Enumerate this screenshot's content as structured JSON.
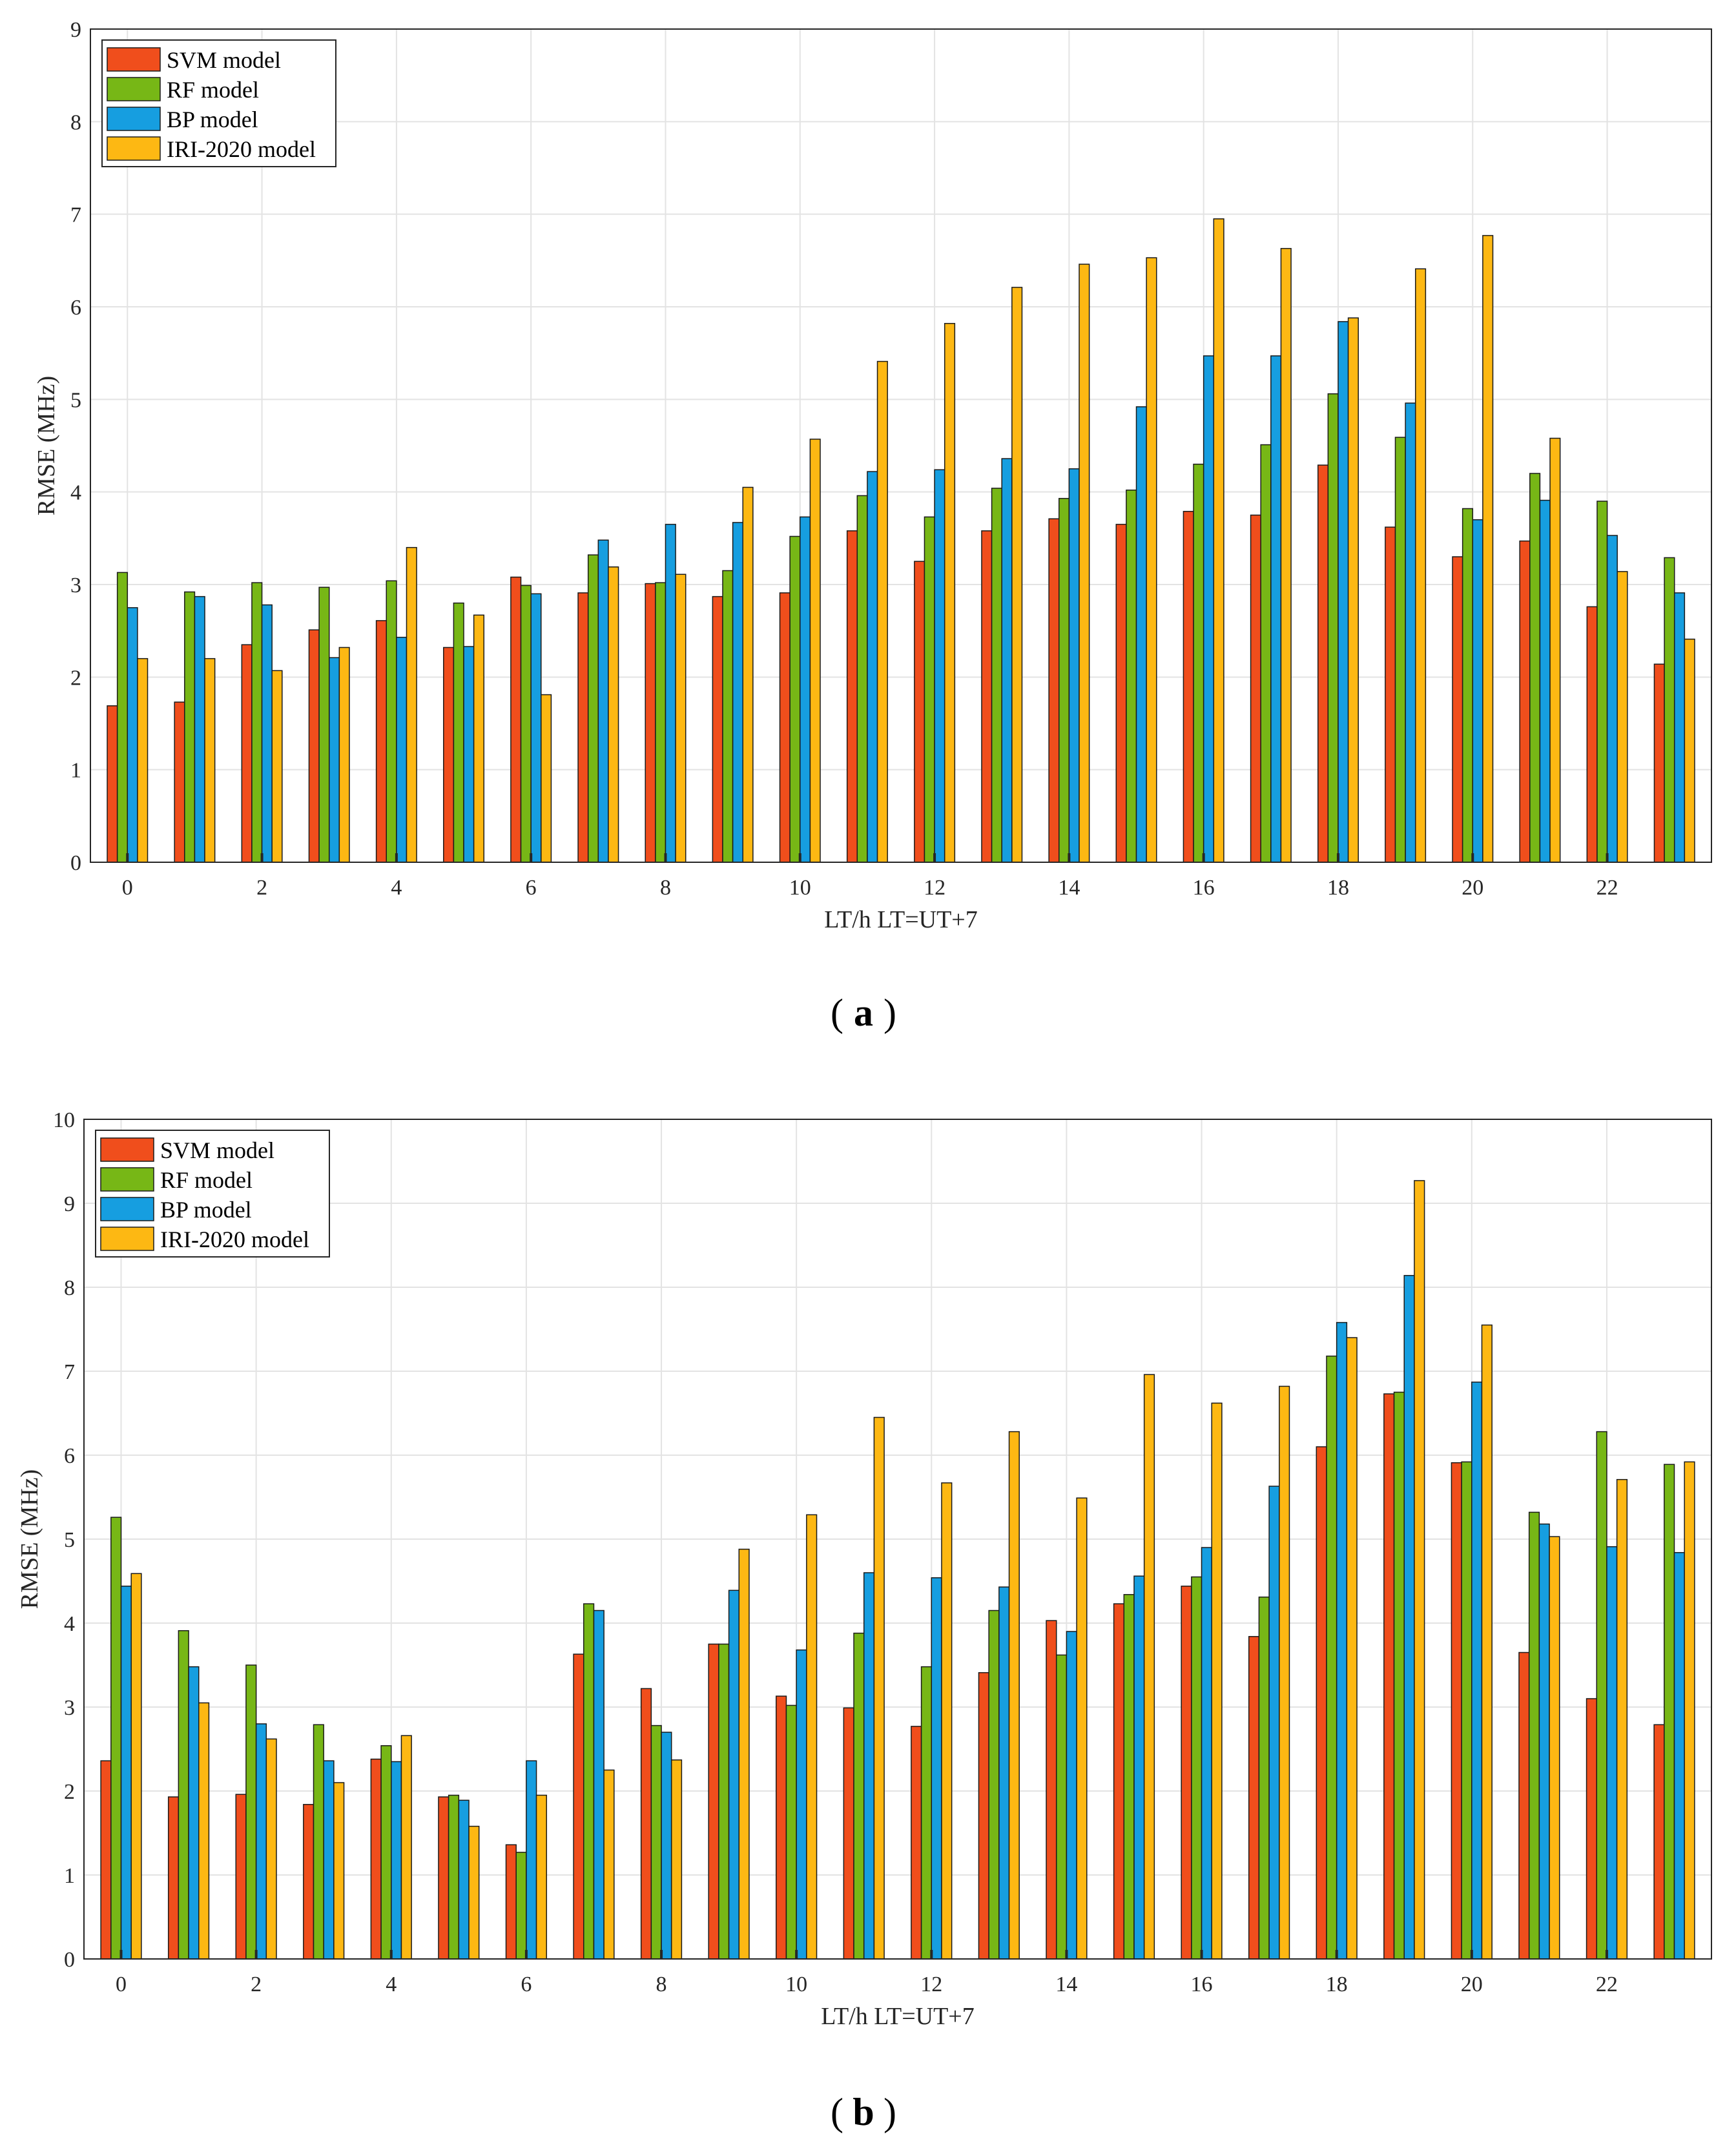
{
  "colors": {
    "svm": "#f04e1c",
    "rf": "#77b716",
    "bp": "#169ee0",
    "iri": "#fdb813",
    "grid": "#e3e3e3",
    "axis": "#262626"
  },
  "chart_data": [
    {
      "type": "bar",
      "panel_label": "a",
      "xlabel": "LT/h  LT=UT+7",
      "ylabel": "RMSE (MHz)",
      "ylim": [
        0,
        9
      ],
      "yticks": [
        "0",
        "1",
        "2",
        "3",
        "4",
        "5",
        "6",
        "7",
        "8",
        "9"
      ],
      "xticks": [
        "0",
        "2",
        "4",
        "6",
        "8",
        "10",
        "12",
        "14",
        "16",
        "18",
        "20",
        "22"
      ],
      "categories": [
        "0",
        "1",
        "2",
        "3",
        "4",
        "5",
        "6",
        "7",
        "8",
        "9",
        "10",
        "11",
        "12",
        "13",
        "14",
        "15",
        "16",
        "17",
        "18",
        "19",
        "20",
        "21",
        "22",
        "23"
      ],
      "grid": true,
      "legend_position": "top-left",
      "series": [
        {
          "name": "SVM model",
          "color_key": "svm",
          "values": [
            1.69,
            1.73,
            2.35,
            2.51,
            2.61,
            2.32,
            3.08,
            2.91,
            3.01,
            2.87,
            2.91,
            3.58,
            3.25,
            3.58,
            3.71,
            3.65,
            3.79,
            3.75,
            4.29,
            3.62,
            3.3,
            3.47,
            2.76,
            2.14
          ]
        },
        {
          "name": "RF model",
          "color_key": "rf",
          "values": [
            3.13,
            2.92,
            3.02,
            2.97,
            3.04,
            2.8,
            2.99,
            3.32,
            3.02,
            3.15,
            3.52,
            3.96,
            3.73,
            4.04,
            3.93,
            4.02,
            4.3,
            4.51,
            5.06,
            4.59,
            3.82,
            4.2,
            3.9,
            3.29
          ]
        },
        {
          "name": "BP model",
          "color_key": "bp",
          "values": [
            2.75,
            2.87,
            2.78,
            2.21,
            2.43,
            2.33,
            2.9,
            3.48,
            3.65,
            3.67,
            3.73,
            4.22,
            4.24,
            4.36,
            4.25,
            4.92,
            5.47,
            5.47,
            5.84,
            4.96,
            3.7,
            3.91,
            3.53,
            2.91
          ]
        },
        {
          "name": "IRI-2020 model",
          "color_key": "iri",
          "values": [
            2.2,
            2.2,
            2.07,
            2.32,
            3.4,
            2.67,
            1.81,
            3.19,
            3.11,
            4.05,
            4.57,
            5.41,
            5.82,
            6.21,
            6.46,
            6.53,
            6.95,
            6.63,
            5.88,
            6.41,
            6.77,
            4.58,
            3.14,
            2.41
          ]
        }
      ]
    },
    {
      "type": "bar",
      "panel_label": "b",
      "xlabel": "LT/h  LT=UT+7",
      "ylabel": "RMSE (MHz)",
      "ylim": [
        0,
        10
      ],
      "yticks": [
        "0",
        "1",
        "2",
        "3",
        "4",
        "5",
        "6",
        "7",
        "8",
        "9",
        "10"
      ],
      "xticks": [
        "0",
        "2",
        "4",
        "6",
        "8",
        "10",
        "12",
        "14",
        "16",
        "18",
        "20",
        "22"
      ],
      "categories": [
        "0",
        "1",
        "2",
        "3",
        "4",
        "5",
        "6",
        "7",
        "8",
        "9",
        "10",
        "11",
        "12",
        "13",
        "14",
        "15",
        "16",
        "17",
        "18",
        "19",
        "20",
        "21",
        "22",
        "23"
      ],
      "grid": true,
      "legend_position": "top-left",
      "series": [
        {
          "name": "SVM model",
          "color_key": "svm",
          "values": [
            2.36,
            1.93,
            1.96,
            1.84,
            2.38,
            1.93,
            1.36,
            3.63,
            3.22,
            3.75,
            3.13,
            2.99,
            2.77,
            3.41,
            4.03,
            4.23,
            4.44,
            3.84,
            6.1,
            6.73,
            5.91,
            3.65,
            3.1,
            2.79
          ]
        },
        {
          "name": "RF model",
          "color_key": "rf",
          "values": [
            5.26,
            3.91,
            3.5,
            2.79,
            2.54,
            1.95,
            1.27,
            4.23,
            2.78,
            3.75,
            3.02,
            3.88,
            3.48,
            4.15,
            3.62,
            4.34,
            4.55,
            4.31,
            7.18,
            6.75,
            5.92,
            5.32,
            6.28,
            5.89
          ]
        },
        {
          "name": "BP model",
          "color_key": "bp",
          "values": [
            4.44,
            3.48,
            2.8,
            2.36,
            2.35,
            1.89,
            2.36,
            4.15,
            2.7,
            4.39,
            3.68,
            4.6,
            4.54,
            4.43,
            3.9,
            4.56,
            4.9,
            5.63,
            7.58,
            8.14,
            6.87,
            5.18,
            4.91,
            4.84
          ]
        },
        {
          "name": "IRI-2020 model",
          "color_key": "iri",
          "values": [
            4.59,
            3.05,
            2.62,
            2.1,
            2.66,
            1.58,
            1.95,
            2.25,
            2.37,
            4.88,
            5.29,
            6.45,
            5.67,
            6.28,
            5.49,
            6.96,
            6.62,
            6.82,
            7.4,
            9.27,
            7.55,
            5.03,
            5.71,
            5.92
          ]
        }
      ]
    }
  ]
}
